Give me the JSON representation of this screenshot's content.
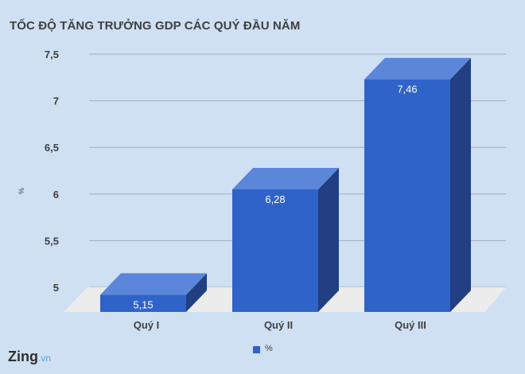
{
  "chart_data": {
    "type": "bar",
    "title": "TỐC ĐỘ TĂNG TRƯỞNG GDP CÁC QUÝ ĐẦU NĂM",
    "ylabel": "%",
    "categories": [
      "Quý I",
      "Quý II",
      "Quý III"
    ],
    "series": [
      {
        "name": "%",
        "values": [
          5.15,
          6.28,
          7.46
        ]
      }
    ],
    "data_labels": [
      "5,15",
      "6,28",
      "7,46"
    ],
    "ylim": [
      5,
      7.5
    ],
    "yticks": [
      "5",
      "5,5",
      "6",
      "6,5",
      "7",
      "7,5"
    ],
    "ytick_values": [
      5,
      5.5,
      6,
      6.5,
      7,
      7.5
    ],
    "grid": true,
    "style": "3d",
    "legend": "bottom",
    "colors": {
      "front": "#2f63c9",
      "top": "#5b86d9",
      "side": "#213f82",
      "floor": "#ececec",
      "background": "#cfe0f3"
    }
  },
  "logo": {
    "main": "Zing",
    "suffix": ".vn"
  }
}
